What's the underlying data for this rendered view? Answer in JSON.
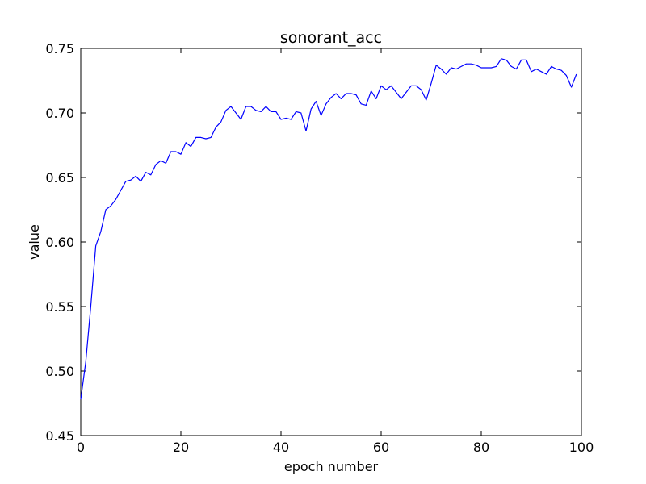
{
  "chart_data": {
    "type": "line",
    "title": "sonorant_acc",
    "xlabel": "epoch number",
    "ylabel": "value",
    "xlim": [
      0,
      100
    ],
    "ylim": [
      0.45,
      0.75
    ],
    "x_ticks": [
      0,
      20,
      40,
      60,
      80,
      100
    ],
    "x_tick_labels": [
      "0",
      "20",
      "40",
      "60",
      "80",
      "100"
    ],
    "y_ticks": [
      0.45,
      0.5,
      0.55,
      0.6,
      0.65,
      0.7,
      0.75
    ],
    "y_tick_labels": [
      "0.45",
      "0.50",
      "0.55",
      "0.60",
      "0.65",
      "0.70",
      "0.75"
    ],
    "grid": false,
    "line_color": "#0000ff",
    "x": [
      0,
      1,
      2,
      3,
      4,
      5,
      6,
      7,
      8,
      9,
      10,
      11,
      12,
      13,
      14,
      15,
      16,
      17,
      18,
      19,
      20,
      21,
      22,
      23,
      24,
      25,
      26,
      27,
      28,
      29,
      30,
      31,
      32,
      33,
      34,
      35,
      36,
      37,
      38,
      39,
      40,
      41,
      42,
      43,
      44,
      45,
      46,
      47,
      48,
      49,
      50,
      51,
      52,
      53,
      54,
      55,
      56,
      57,
      58,
      59,
      60,
      61,
      62,
      63,
      64,
      65,
      66,
      67,
      68,
      69,
      70,
      71,
      72,
      73,
      74,
      75,
      76,
      77,
      78,
      79,
      80,
      81,
      82,
      83,
      84,
      85,
      86,
      87,
      88,
      89,
      90,
      91,
      92,
      93,
      94,
      95,
      96,
      97,
      98,
      99
    ],
    "values": [
      0.478,
      0.507,
      0.55,
      0.597,
      0.608,
      0.625,
      0.628,
      0.633,
      0.64,
      0.647,
      0.648,
      0.651,
      0.647,
      0.654,
      0.652,
      0.66,
      0.663,
      0.661,
      0.67,
      0.67,
      0.668,
      0.677,
      0.674,
      0.681,
      0.681,
      0.68,
      0.681,
      0.689,
      0.693,
      0.702,
      0.705,
      0.7,
      0.695,
      0.705,
      0.705,
      0.702,
      0.701,
      0.705,
      0.701,
      0.701,
      0.695,
      0.696,
      0.695,
      0.701,
      0.7,
      0.686,
      0.703,
      0.709,
      0.698,
      0.707,
      0.712,
      0.715,
      0.711,
      0.715,
      0.715,
      0.714,
      0.707,
      0.706,
      0.717,
      0.711,
      0.721,
      0.718,
      0.721,
      0.716,
      0.711,
      0.716,
      0.721,
      0.721,
      0.718,
      0.71,
      0.723,
      0.737,
      0.734,
      0.73,
      0.735,
      0.734,
      0.736,
      0.738,
      0.738,
      0.737,
      0.735,
      0.735,
      0.735,
      0.736,
      0.742,
      0.741,
      0.736,
      0.734,
      0.741,
      0.741,
      0.732,
      0.734,
      0.732,
      0.73,
      0.736,
      0.734,
      0.733,
      0.729,
      0.72,
      0.73
    ]
  }
}
